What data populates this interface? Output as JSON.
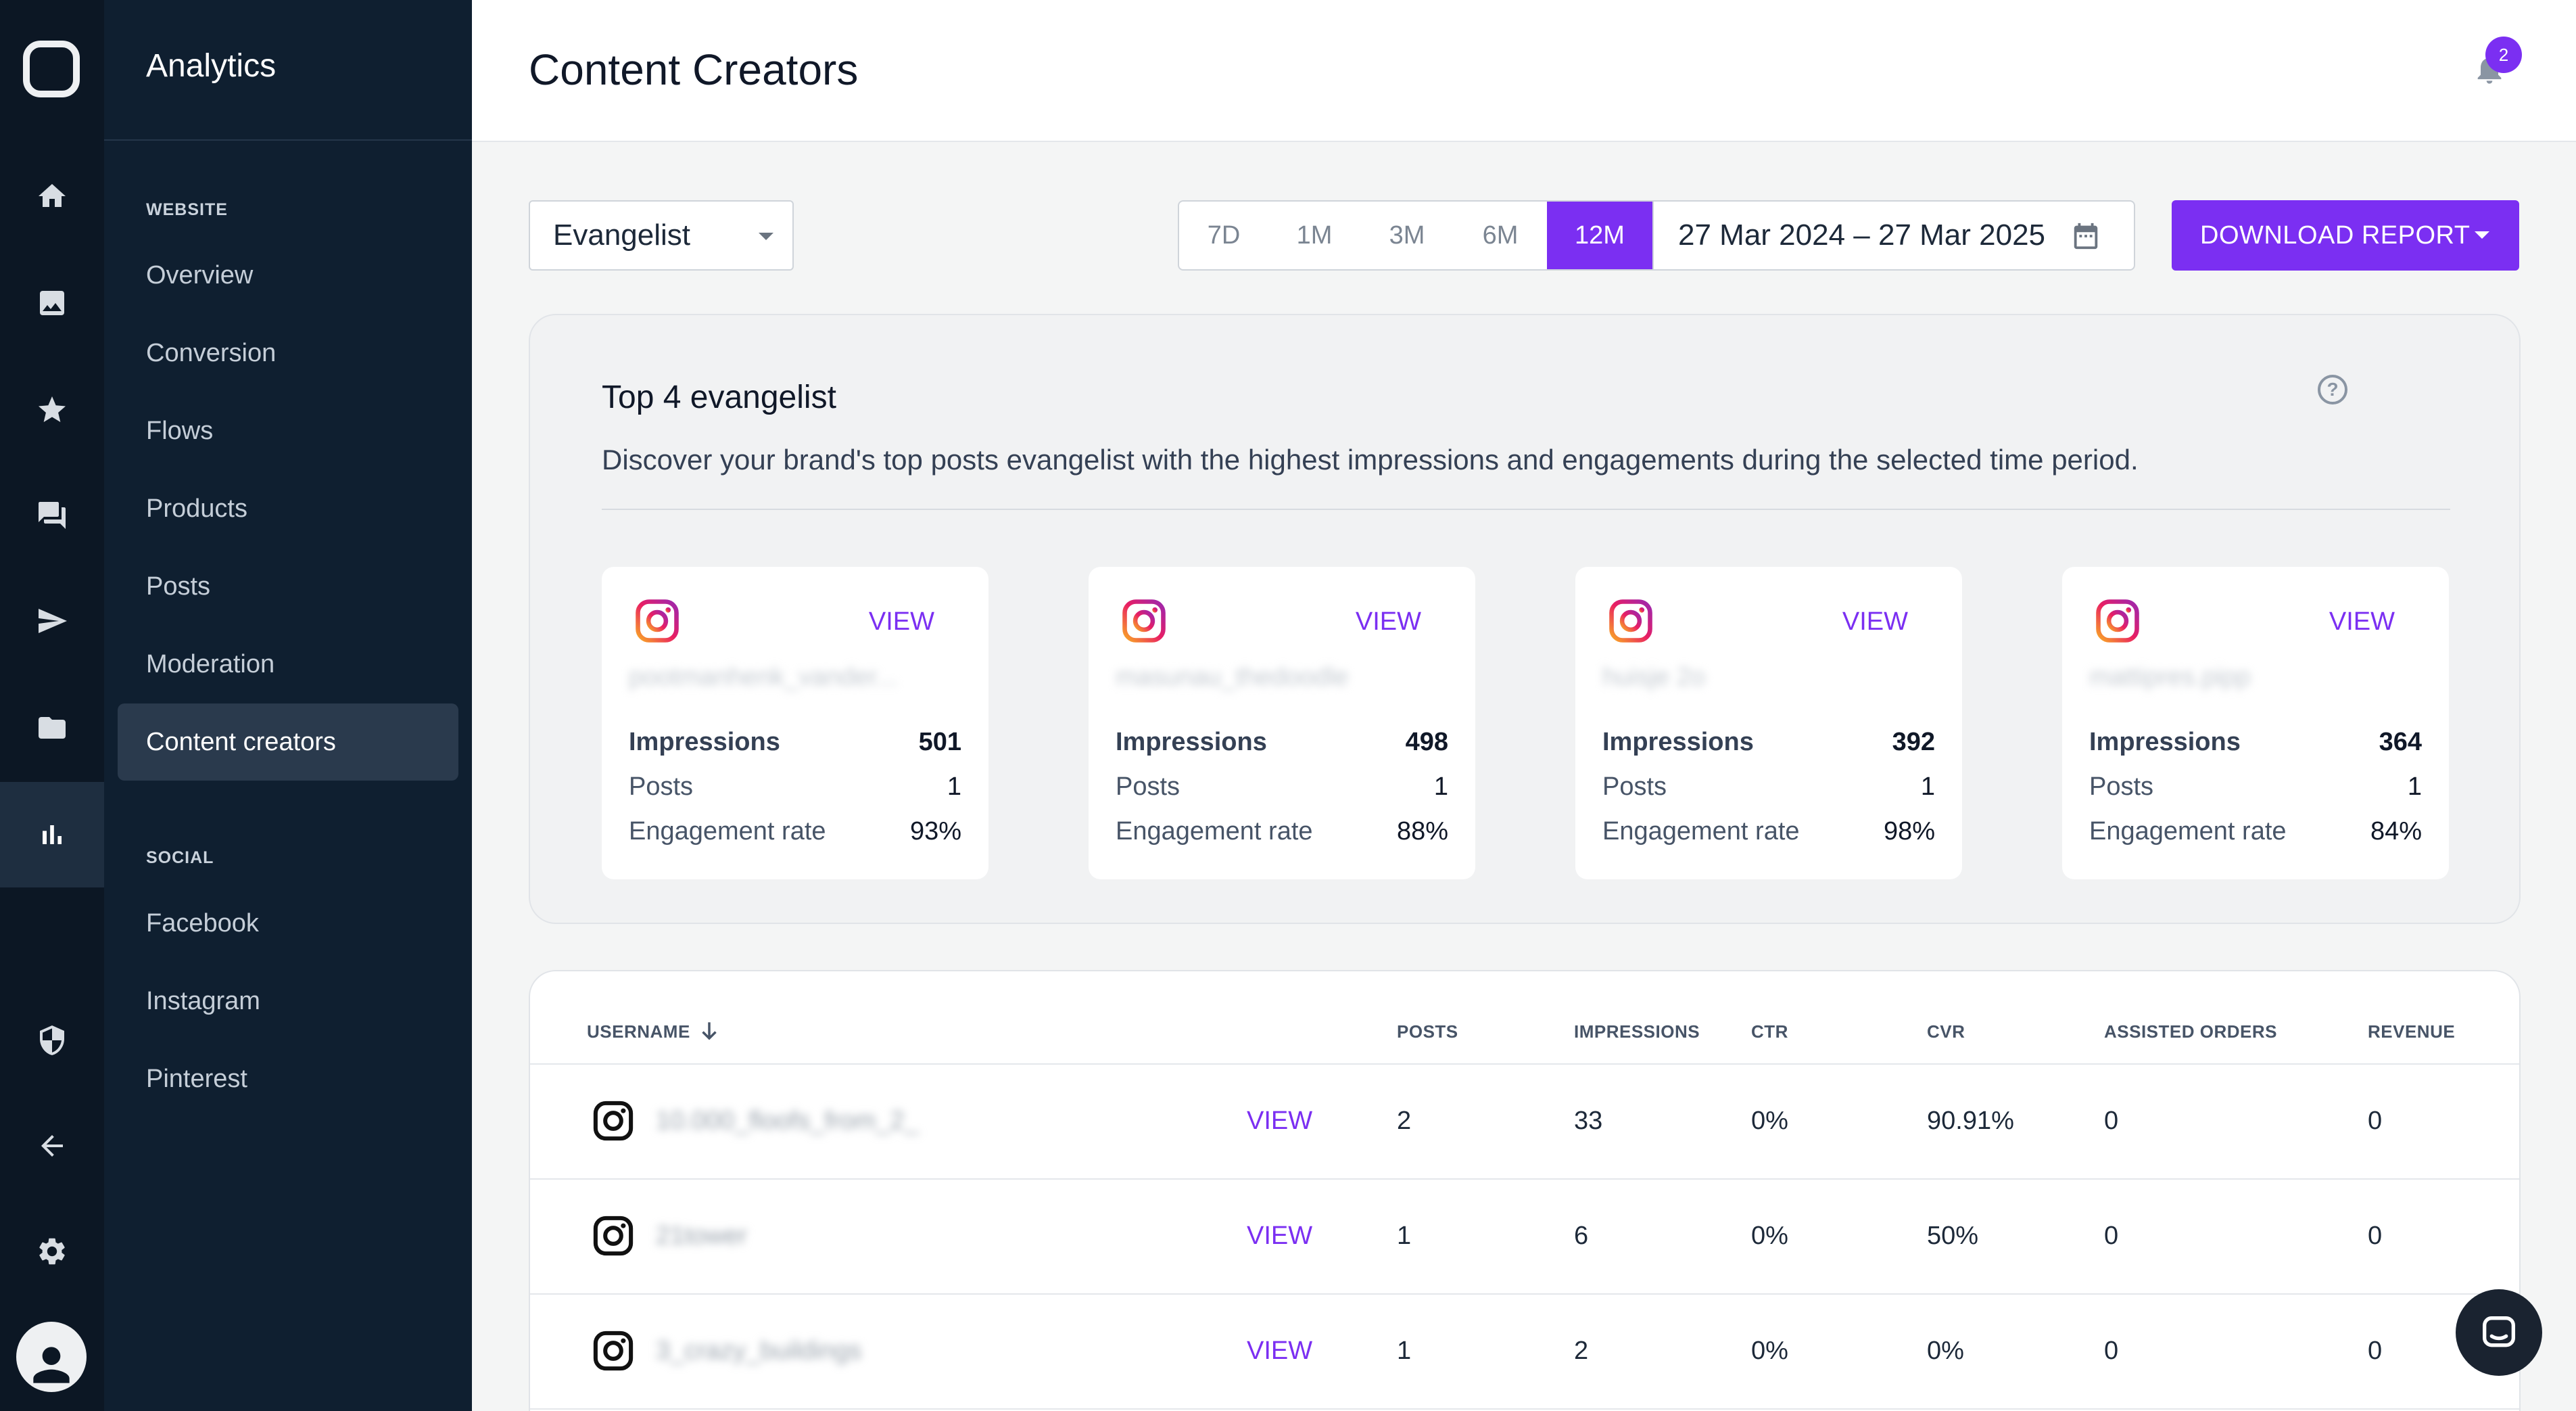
{
  "rail": {
    "icons": [
      "home-icon",
      "image-icon",
      "star-icon",
      "chat-icon",
      "send-icon",
      "folder-icon",
      "bar-chart-icon",
      "shield-icon",
      "arrow-left-icon",
      "gear-icon"
    ],
    "active": "bar-chart-icon"
  },
  "nav": {
    "title": "Analytics",
    "website_section": "WEBSITE",
    "website_items": [
      "Overview",
      "Conversion",
      "Flows",
      "Products",
      "Posts",
      "Moderation",
      "Content creators"
    ],
    "active_item": "Content creators",
    "social_section": "SOCIAL",
    "social_items": [
      "Facebook",
      "Instagram",
      "Pinterest"
    ]
  },
  "header": {
    "title": "Content Creators",
    "notification_count": "2"
  },
  "filters": {
    "segment": "Evangelist",
    "ranges": [
      "7D",
      "1M",
      "3M",
      "6M",
      "12M"
    ],
    "active_range": "12M",
    "date_range": "27 Mar 2024 – 27 Mar 2025",
    "download_label": "DOWNLOAD REPORT"
  },
  "top": {
    "title": "Top 4 evangelist",
    "description": "Discover your brand's top posts evangelist with the highest impressions and engagements during the selected time period.",
    "cards": [
      {
        "view": "VIEW",
        "username": "pootmanhenk_vander...",
        "impressions_label": "Impressions",
        "impressions": "501",
        "posts_label": "Posts",
        "posts": "1",
        "engagement_label": "Engagement rate",
        "engagement": "93%"
      },
      {
        "view": "VIEW",
        "username": "masunau_thedoodle",
        "impressions_label": "Impressions",
        "impressions": "498",
        "posts_label": "Posts",
        "posts": "1",
        "engagement_label": "Engagement rate",
        "engagement": "88%"
      },
      {
        "view": "VIEW",
        "username": "huisje 2o",
        "impressions_label": "Impressions",
        "impressions": "392",
        "posts_label": "Posts",
        "posts": "1",
        "engagement_label": "Engagement rate",
        "engagement": "98%"
      },
      {
        "view": "VIEW",
        "username": "mattipres.pipp",
        "impressions_label": "Impressions",
        "impressions": "364",
        "posts_label": "Posts",
        "posts": "1",
        "engagement_label": "Engagement rate",
        "engagement": "84%"
      }
    ]
  },
  "table": {
    "headers": {
      "username": "USERNAME",
      "posts": "POSTS",
      "impressions": "IMPRESSIONS",
      "ctr": "CTR",
      "cvr": "CVR",
      "assisted_orders": "ASSISTED ORDERS",
      "revenue": "REVENUE"
    },
    "rows": [
      {
        "username": "10.000_floofs_from_2_",
        "view": "VIEW",
        "posts": "2",
        "impressions": "33",
        "ctr": "0%",
        "cvr": "90.91%",
        "assisted_orders": "0",
        "revenue": "0"
      },
      {
        "username": "21tower",
        "view": "VIEW",
        "posts": "1",
        "impressions": "6",
        "ctr": "0%",
        "cvr": "50%",
        "assisted_orders": "0",
        "revenue": "0"
      },
      {
        "username": "3_crazy_buildings",
        "view": "VIEW",
        "posts": "1",
        "impressions": "2",
        "ctr": "0%",
        "cvr": "0%",
        "assisted_orders": "0",
        "revenue": "0"
      }
    ]
  },
  "colors": {
    "accent": "#7b2ff2",
    "rail_bg": "#0c1724",
    "nav_bg": "#0f1f30",
    "page_bg": "#f4f5f5"
  }
}
